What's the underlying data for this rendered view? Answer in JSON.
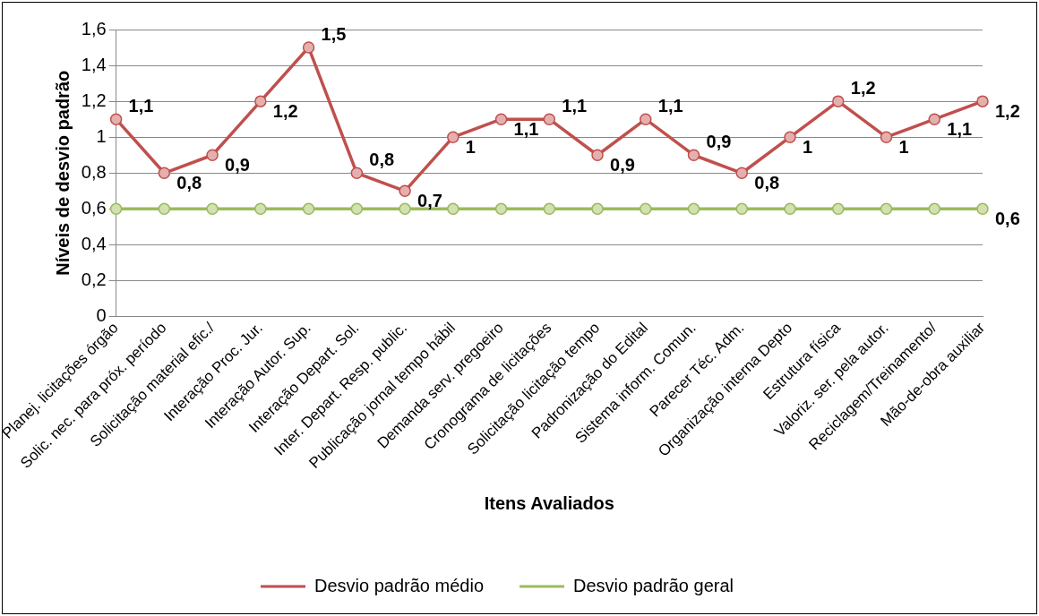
{
  "chart_data": {
    "type": "line",
    "xlabel": "Itens Avaliados",
    "ylabel": "Níveis de desvio padrão",
    "categories": [
      "Planej. licitações órgão",
      "Solic. nec. para próx. período",
      "Solicitação material efic./",
      "Interação Proc. Jur.",
      "Interação Autor. Sup.",
      "Interação Depart. Sol.",
      "Inter. Depart. Resp. public.",
      "Publicação jornal tempo hábil",
      "Demanda serv. pregoeiro",
      "Cronograma de licitações",
      "Solicitação licitação tempo",
      "Padronização do Edital",
      "Sistema inform. Comun.",
      "Parecer Téc. Adm.",
      "Organização interna Depto",
      "Estrutura física",
      "Valoriz. ser. pela autor.",
      "Reciclagem/Treinamento/",
      "Mão-de-obra auxiliar"
    ],
    "series": [
      {
        "name": "Desvio padrão médio",
        "color": "#c0504d",
        "values": [
          1.1,
          0.8,
          0.9,
          1.2,
          1.5,
          0.8,
          0.7,
          1.0,
          1.1,
          1.1,
          0.9,
          1.1,
          0.9,
          0.8,
          1.0,
          1.2,
          1.0,
          1.1,
          1.2
        ],
        "value_labels": [
          "1,1",
          "0,8",
          "0,9",
          "1,2",
          "1,5",
          "0,8",
          "0,7",
          "1",
          "1,1",
          "1,1",
          "0,9",
          "1,1",
          "0,9",
          "0,8",
          "1",
          "1,2",
          "1",
          "1,1",
          "1,2"
        ]
      },
      {
        "name": "Desvio padrão geral",
        "color": "#9bbb59",
        "values": [
          0.6,
          0.6,
          0.6,
          0.6,
          0.6,
          0.6,
          0.6,
          0.6,
          0.6,
          0.6,
          0.6,
          0.6,
          0.6,
          0.6,
          0.6,
          0.6,
          0.6,
          0.6,
          0.6
        ],
        "value_labels": [
          null,
          null,
          null,
          null,
          null,
          null,
          null,
          null,
          null,
          null,
          null,
          null,
          null,
          null,
          null,
          null,
          null,
          null,
          "0,6"
        ]
      }
    ],
    "ylim": [
      0,
      1.6
    ],
    "yticks": [
      {
        "value": 0,
        "label": "0"
      },
      {
        "value": 0.2,
        "label": "0,2"
      },
      {
        "value": 0.4,
        "label": "0,4"
      },
      {
        "value": 0.6,
        "label": "0,6"
      },
      {
        "value": 0.8,
        "label": "0,8"
      },
      {
        "value": 1,
        "label": "1"
      },
      {
        "value": 1.2,
        "label": "1,2"
      },
      {
        "value": 1.4,
        "label": "1,4"
      },
      {
        "value": 1.6,
        "label": "1,6"
      }
    ],
    "grid": "y",
    "legend": "bottom",
    "marker": "circle",
    "line_style": "solid"
  }
}
